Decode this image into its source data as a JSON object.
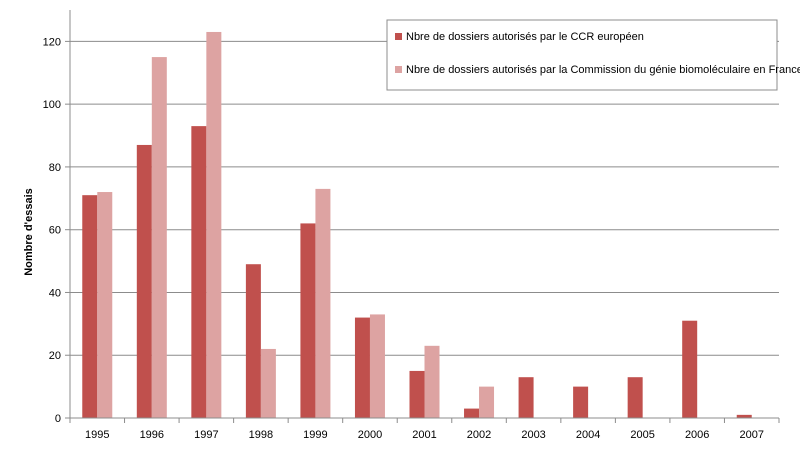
{
  "chart_data": {
    "type": "bar",
    "title": "",
    "xlabel": "",
    "ylabel": "Nombre d'essais",
    "ylim": [
      0,
      130
    ],
    "yticks": [
      0,
      20,
      40,
      60,
      80,
      100,
      120
    ],
    "grid": "horizontal",
    "legend_position": "top-right",
    "categories": [
      "1995",
      "1996",
      "1997",
      "1998",
      "1999",
      "2000",
      "2001",
      "2002",
      "2003",
      "2004",
      "2005",
      "2006",
      "2007"
    ],
    "series": [
      {
        "name": "Nbre de dossiers autorisés par le CCR européen",
        "color": "#c0504d",
        "values": [
          71,
          87,
          93,
          49,
          62,
          32,
          15,
          3,
          13,
          10,
          13,
          31,
          1
        ]
      },
      {
        "name": "Nbre de dossiers autorisés par la Commission du génie biomoléculaire en France",
        "color": "#dda3a2",
        "values": [
          72,
          115,
          123,
          22,
          73,
          33,
          23,
          10,
          0,
          0,
          0,
          0,
          0
        ]
      }
    ]
  }
}
